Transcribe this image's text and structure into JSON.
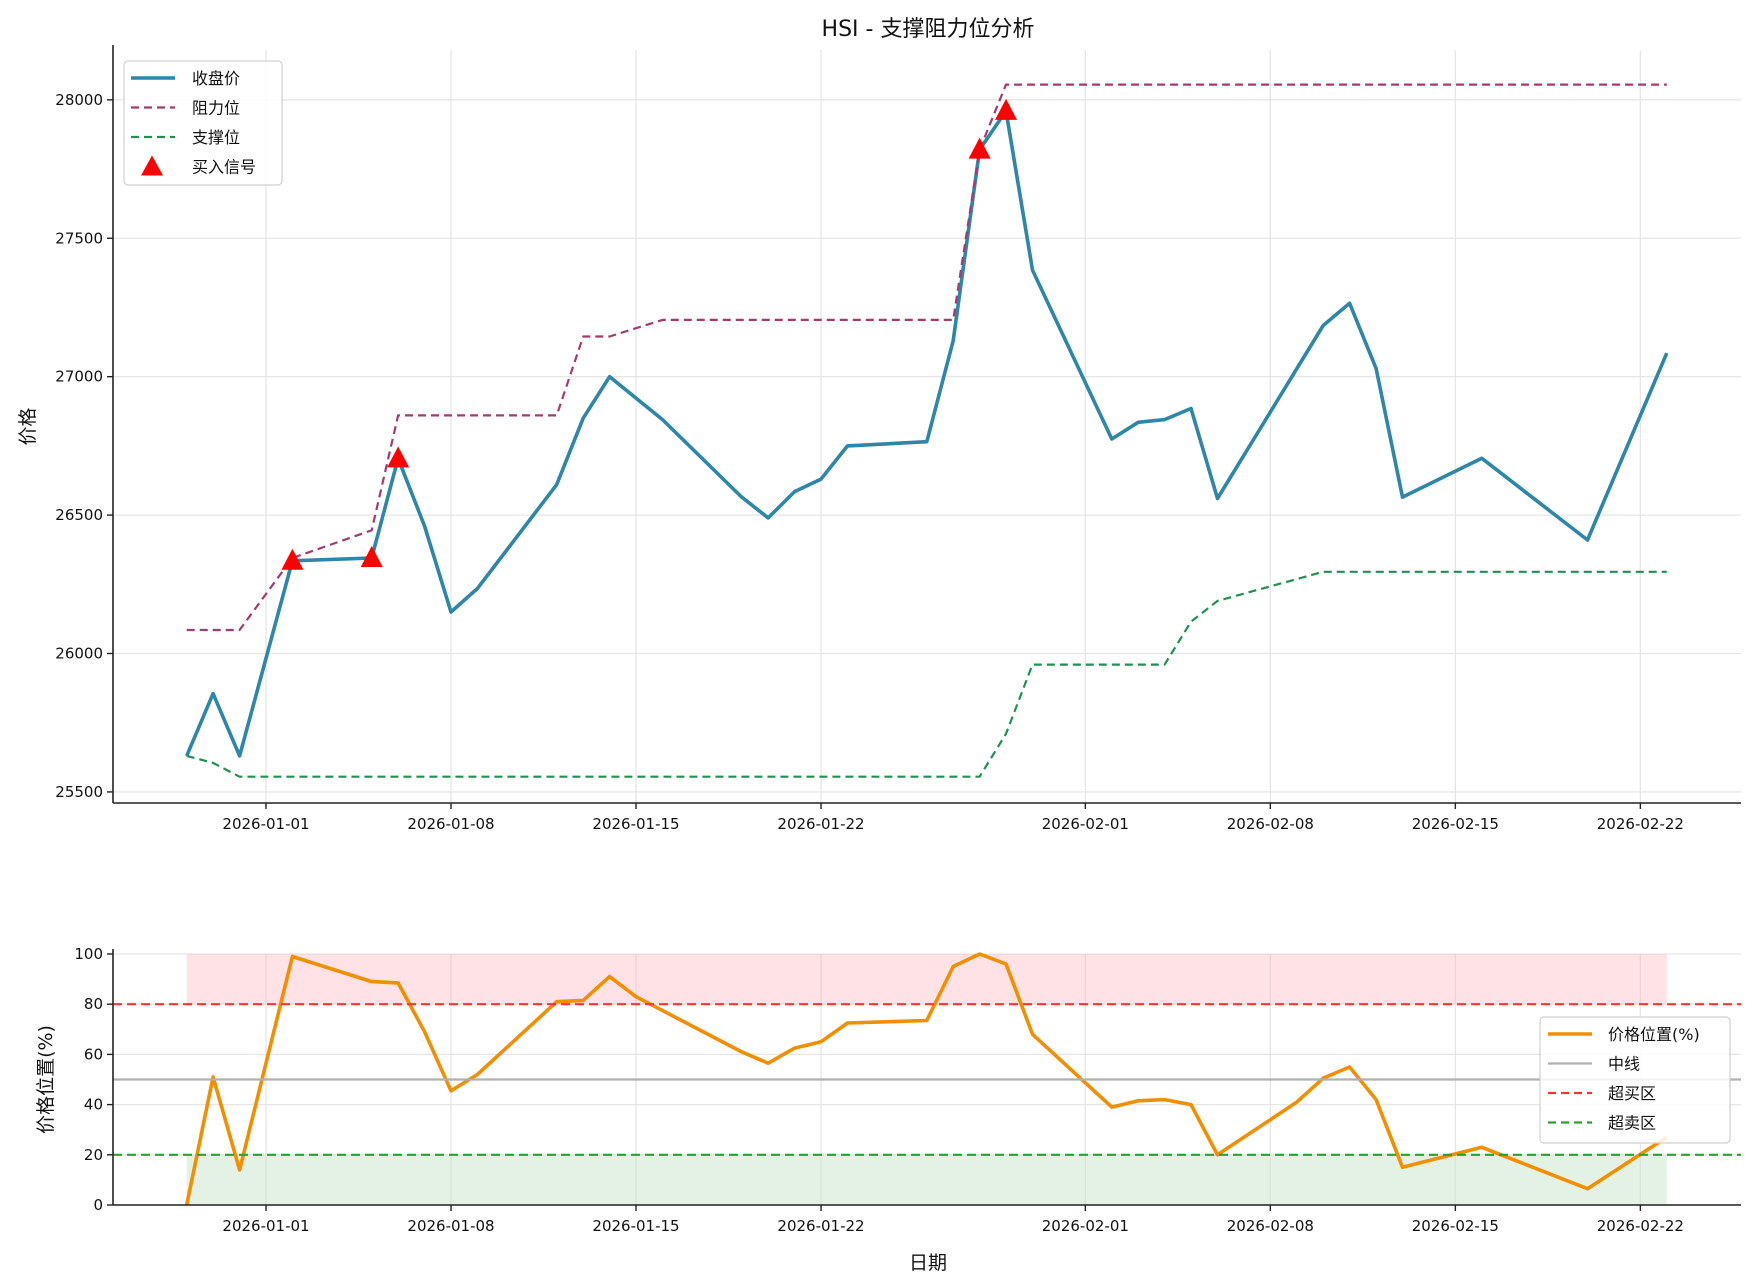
{
  "chart_data": [
    {
      "type": "line",
      "title": "HSI - 支撑阻力位分析",
      "xlabel": "",
      "ylabel": "价格",
      "ylim": [
        25460,
        28180
      ],
      "yticks": [
        25500,
        26000,
        26500,
        27000,
        27500,
        28000
      ],
      "xticks": [
        "2026-01-01",
        "2026-01-08",
        "2026-01-15",
        "2026-01-22",
        "2026-02-01",
        "2026-02-08",
        "2026-02-15",
        "2026-02-22"
      ],
      "grid": true,
      "legend_position": "upper left",
      "x": [
        "2025-12-29",
        "2025-12-30",
        "2025-12-31",
        "2026-01-02",
        "2026-01-05",
        "2026-01-06",
        "2026-01-07",
        "2026-01-08",
        "2026-01-09",
        "2026-01-12",
        "2026-01-13",
        "2026-01-14",
        "2026-01-16",
        "2026-01-19",
        "2026-01-20",
        "2026-01-21",
        "2026-01-22",
        "2026-01-23",
        "2026-01-26",
        "2026-01-27",
        "2026-01-28",
        "2026-01-29",
        "2026-01-30",
        "2026-02-02",
        "2026-02-03",
        "2026-02-04",
        "2026-02-05",
        "2026-02-06",
        "2026-02-10",
        "2026-02-11",
        "2026-02-12",
        "2026-02-13",
        "2026-02-16",
        "2026-02-20",
        "2026-02-23"
      ],
      "series": [
        {
          "name": "收盘价",
          "color": "#2E86AB",
          "style": "solid",
          "values": [
            25630,
            25855,
            25630,
            26335,
            26345,
            26705,
            26460,
            26150,
            26235,
            26610,
            26850,
            27000,
            26845,
            26565,
            26490,
            26585,
            26630,
            26750,
            26765,
            27130,
            27820,
            27960,
            27385,
            26775,
            26835,
            26845,
            26885,
            26560,
            27185,
            27265,
            27030,
            26565,
            26705,
            26410,
            27085
          ]
        },
        {
          "name": "阻力位",
          "color": "#A23B72",
          "style": "dashed",
          "values": [
            26085,
            26085,
            26085,
            26345,
            26445,
            26860,
            26860,
            26860,
            26860,
            26860,
            27145,
            27145,
            27205,
            27205,
            27205,
            27205,
            27205,
            27205,
            27205,
            27205,
            27820,
            28055,
            28055,
            28055,
            28055,
            28055,
            28055,
            28055,
            28055,
            28055,
            28055,
            28055,
            28055,
            28055,
            28055
          ]
        },
        {
          "name": "支撑位",
          "color": "#1F9150",
          "style": "dashed",
          "values": [
            25630,
            25605,
            25555,
            25555,
            25555,
            25555,
            25555,
            25555,
            25555,
            25555,
            25555,
            25555,
            25555,
            25555,
            25555,
            25555,
            25555,
            25555,
            25555,
            25555,
            25555,
            25710,
            25960,
            25960,
            25960,
            25960,
            26115,
            26190,
            26295,
            26295,
            26295,
            26295,
            26295,
            26295,
            26295
          ]
        }
      ],
      "buy_signals": {
        "name": "买入信号",
        "color": "#FF0000",
        "points": [
          {
            "x": "2026-01-02",
            "y": 26335
          },
          {
            "x": "2026-01-05",
            "y": 26345
          },
          {
            "x": "2026-01-06",
            "y": 26705
          },
          {
            "x": "2026-01-28",
            "y": 27820
          },
          {
            "x": "2026-01-29",
            "y": 27960
          }
        ]
      }
    },
    {
      "type": "line",
      "title": "",
      "xlabel": "日期",
      "ylabel": "价格位置(%)",
      "ylim": [
        0,
        100
      ],
      "yticks": [
        0,
        20,
        40,
        60,
        80,
        100
      ],
      "xticks": [
        "2026-01-01",
        "2026-01-08",
        "2026-01-15",
        "2026-01-22",
        "2026-02-01",
        "2026-02-08",
        "2026-02-15",
        "2026-02-22"
      ],
      "grid": true,
      "legend_position": "center right",
      "x": [
        "2025-12-29",
        "2025-12-30",
        "2025-12-31",
        "2026-01-02",
        "2026-01-05",
        "2026-01-06",
        "2026-01-07",
        "2026-01-08",
        "2026-01-09",
        "2026-01-12",
        "2026-01-13",
        "2026-01-14",
        "2026-01-15",
        "2026-01-19",
        "2026-01-20",
        "2026-01-21",
        "2026-01-22",
        "2026-01-23",
        "2026-01-26",
        "2026-01-27",
        "2026-01-28",
        "2026-01-29",
        "2026-01-30",
        "2026-02-02",
        "2026-02-03",
        "2026-02-04",
        "2026-02-05",
        "2026-02-06",
        "2026-02-09",
        "2026-02-10",
        "2026-02-11",
        "2026-02-12",
        "2026-02-13",
        "2026-02-16",
        "2026-02-20",
        "2026-02-23"
      ],
      "series": [
        {
          "name": "价格位置(%)",
          "color": "#F18F01",
          "style": "solid",
          "values": [
            0,
            51,
            14,
            99,
            89,
            88.5,
            69,
            45.5,
            52,
            81,
            81.5,
            91,
            83,
            61,
            56.5,
            62.5,
            65,
            72.5,
            73.5,
            95,
            100,
            96,
            68,
            39,
            41.5,
            42,
            40,
            20,
            41,
            50.5,
            55,
            42,
            15,
            23,
            6.5,
            27
          ]
        },
        {
          "name": "中线",
          "color": "#B0B0B0",
          "style": "solid",
          "values": [
            50
          ]
        },
        {
          "name": "超买区",
          "color": "#FF3333",
          "style": "dashed",
          "values": [
            80
          ]
        },
        {
          "name": "超卖区",
          "color": "#2CA02C",
          "style": "dashed",
          "values": [
            20
          ]
        }
      ],
      "bands": [
        {
          "from": 80,
          "to": 100,
          "color": "#FFB3BA",
          "x_start": "2025-12-29",
          "x_end": "2026-02-23"
        },
        {
          "from": 0,
          "to": 20,
          "color": "#C8E6C9",
          "x_start": "2025-12-29",
          "x_end": "2026-02-23"
        }
      ]
    }
  ],
  "labels": {
    "title": "HSI - 支撑阻力位分析",
    "top_ylabel": "价格",
    "bottom_ylabel": "价格位置(%)",
    "bottom_xlabel": "日期",
    "top_legend": [
      "收盘价",
      "阻力位",
      "支撑位",
      "买入信号"
    ],
    "bottom_legend": [
      "价格位置(%)",
      "中线",
      "超买区",
      "超卖区"
    ]
  }
}
